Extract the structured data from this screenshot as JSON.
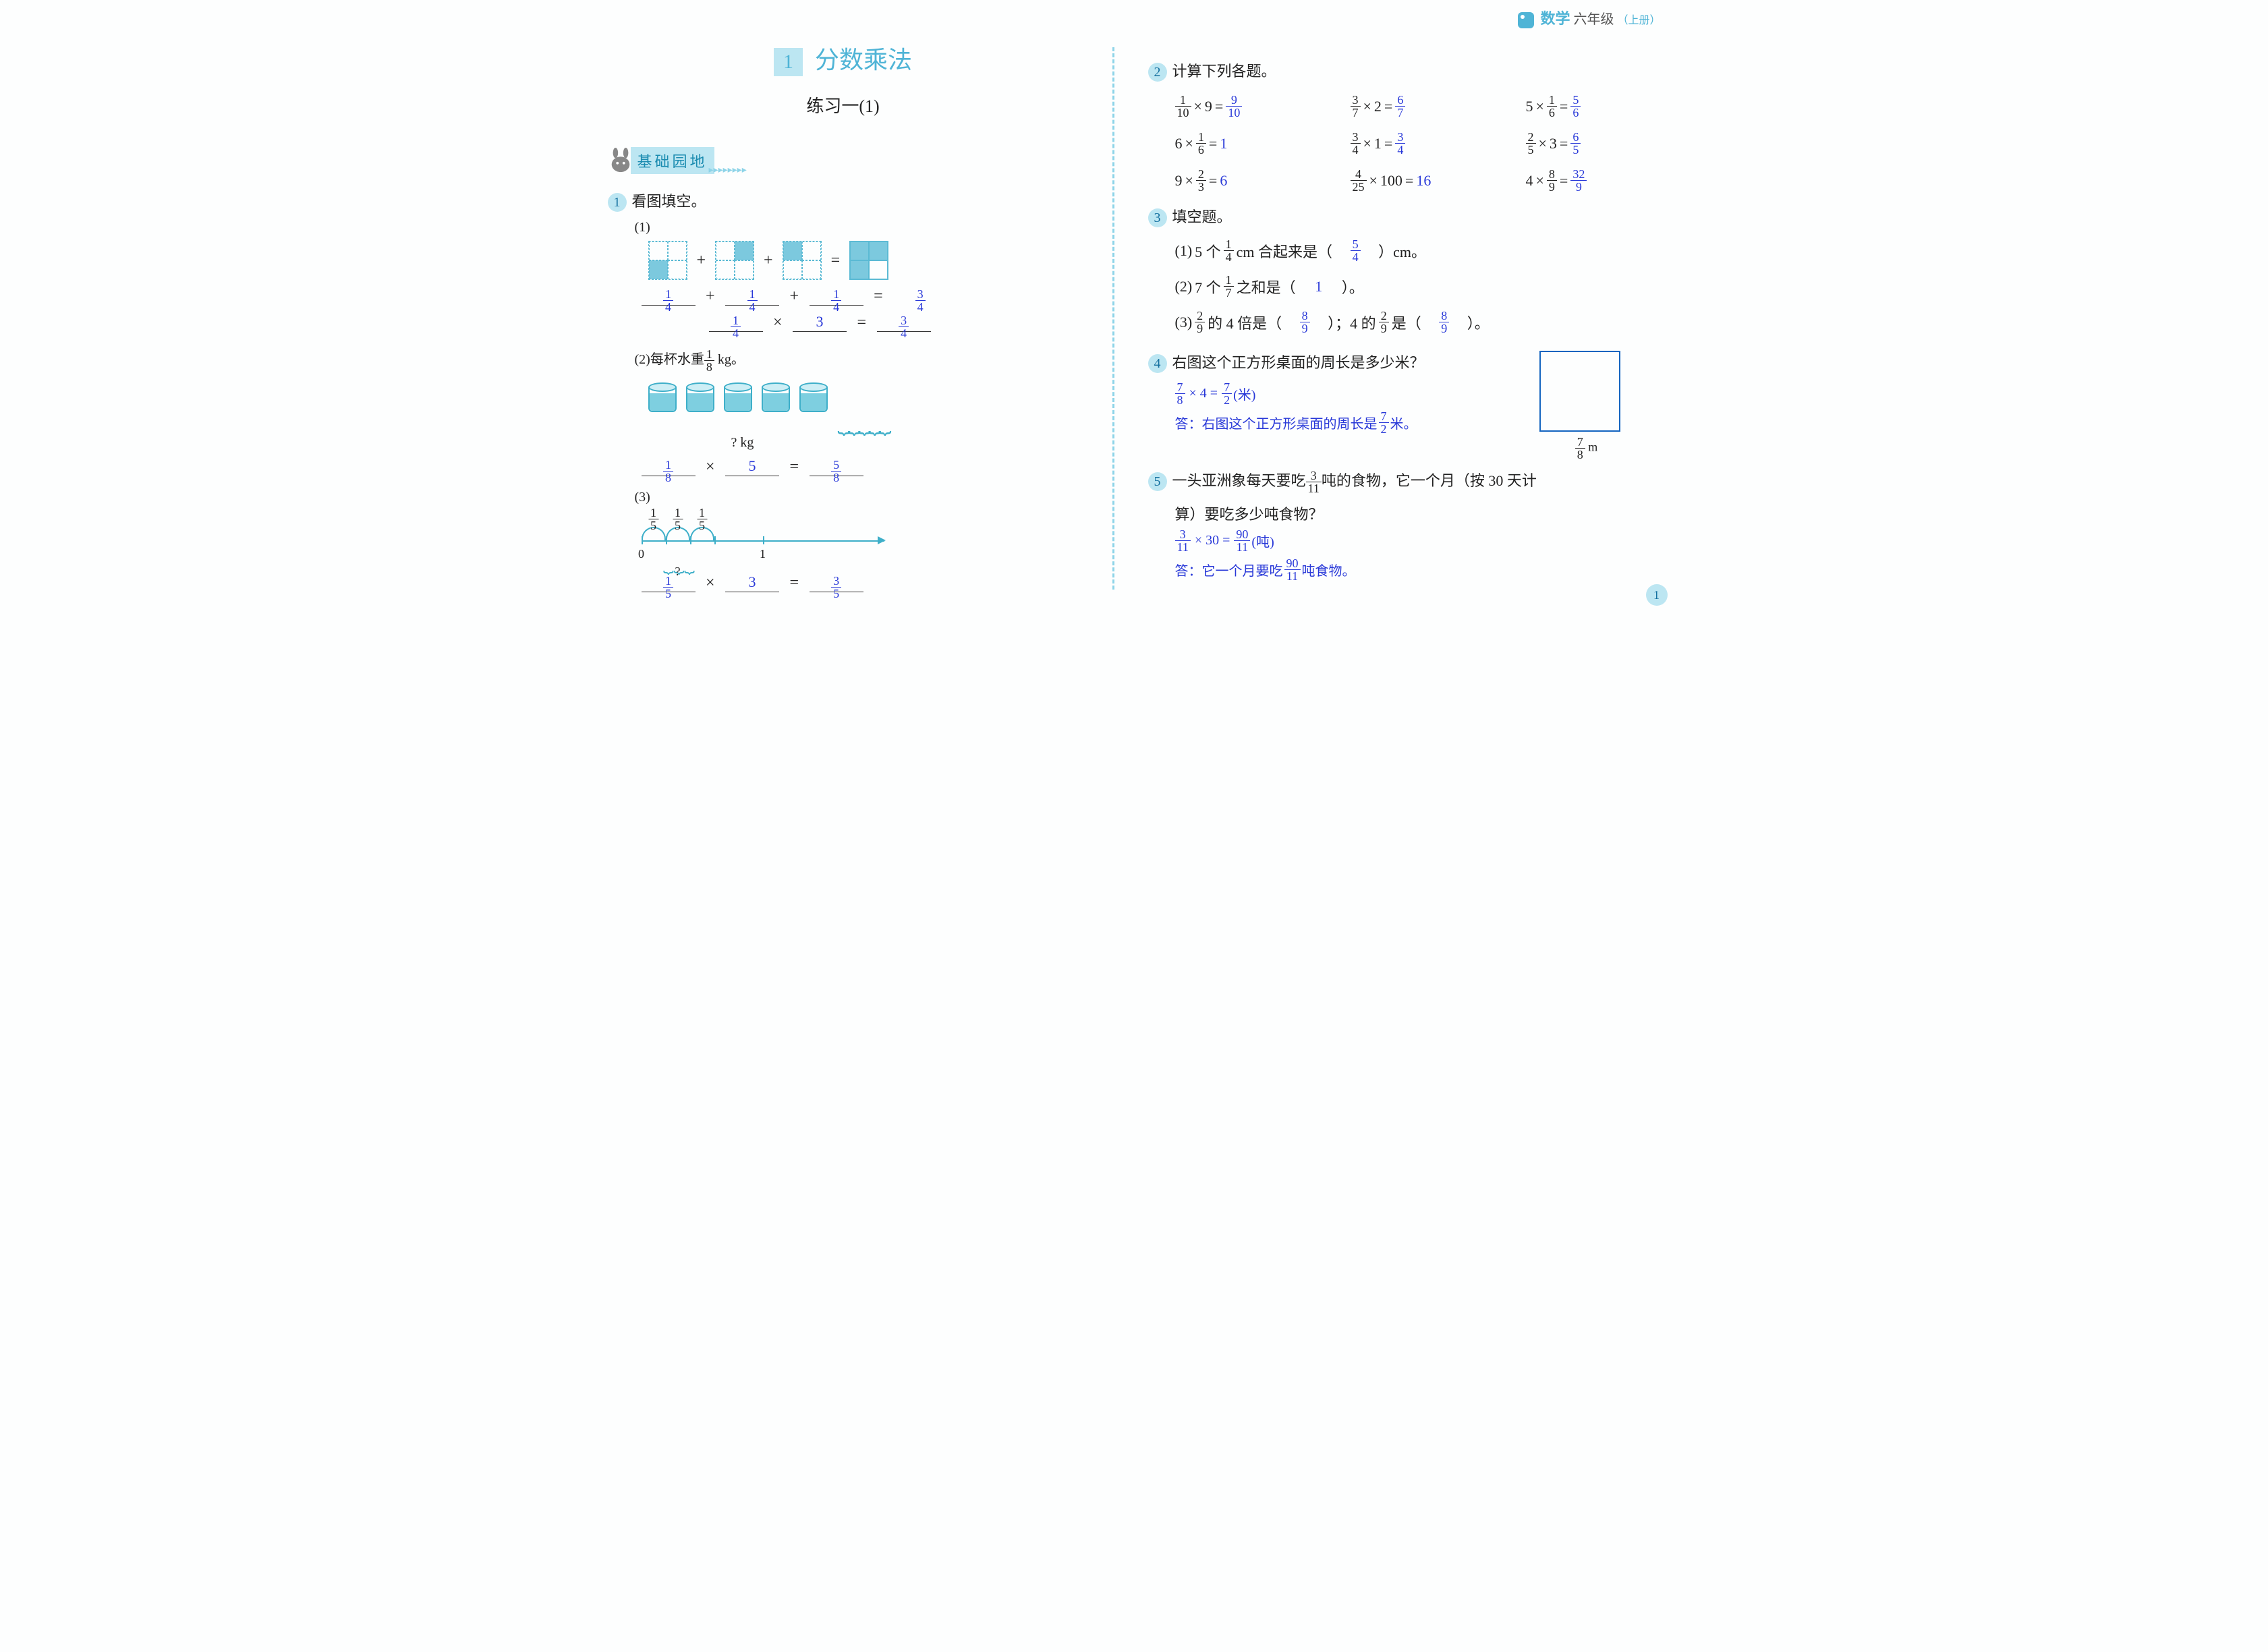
{
  "header": {
    "subject": "数学",
    "grade_prefix": "六",
    "grade": "年级",
    "volume": "（上册）"
  },
  "chapter": {
    "num": "1",
    "title": "分数乘法",
    "subtitle": "练习一(1)"
  },
  "section": {
    "label": "基础园地"
  },
  "colors": {
    "accent": "#4fb4d6",
    "light_accent": "#bce6f2",
    "answer": "#2838d8",
    "text": "#222222",
    "bg": "#fdfefe"
  },
  "q1": {
    "title": "看图填空。",
    "p1": {
      "add": {
        "a": {
          "n": "1",
          "d": "4"
        },
        "b": {
          "n": "1",
          "d": "4"
        },
        "c": {
          "n": "1",
          "d": "4"
        },
        "sum": {
          "n": "3",
          "d": "4"
        }
      },
      "mul": {
        "a": {
          "n": "1",
          "d": "4"
        },
        "b": "3",
        "res": {
          "n": "3",
          "d": "4"
        }
      }
    },
    "p2": {
      "text_pre": "每杯水重",
      "weight": {
        "n": "1",
        "d": "8"
      },
      "unit": " kg。",
      "brace_label": "? kg",
      "mul": {
        "a": {
          "n": "1",
          "d": "8"
        },
        "b": "5",
        "res": {
          "n": "5",
          "d": "8"
        }
      }
    },
    "p3": {
      "seg_frac": {
        "n": "1",
        "d": "5"
      },
      "ticks": {
        "zero": "0",
        "one": "1"
      },
      "mul": {
        "a": {
          "n": "1",
          "d": "5"
        },
        "b": "3",
        "res": {
          "n": "3",
          "d": "5"
        }
      }
    }
  },
  "q2": {
    "title": "计算下列各题。",
    "rows": [
      [
        {
          "l": {
            "n": "1",
            "d": "10"
          },
          "op": "×",
          "r": "9",
          "ans": {
            "n": "9",
            "d": "10"
          }
        },
        {
          "l": {
            "n": "3",
            "d": "7"
          },
          "op": "×",
          "r": "2",
          "ans": {
            "n": "6",
            "d": "7"
          }
        },
        {
          "lw": "5",
          "op": "×",
          "r": {
            "n": "1",
            "d": "6"
          },
          "ans": {
            "n": "5",
            "d": "6"
          }
        }
      ],
      [
        {
          "lw": "6",
          "op": "×",
          "r": {
            "n": "1",
            "d": "6"
          },
          "answ": "1"
        },
        {
          "l": {
            "n": "3",
            "d": "4"
          },
          "op": "×",
          "r": "1",
          "ans": {
            "n": "3",
            "d": "4"
          }
        },
        {
          "l": {
            "n": "2",
            "d": "5"
          },
          "op": "×",
          "r": "3",
          "ans": {
            "n": "6",
            "d": "5"
          }
        }
      ],
      [
        {
          "lw": "9",
          "op": "×",
          "r": {
            "n": "2",
            "d": "3"
          },
          "answ": "6"
        },
        {
          "l": {
            "n": "4",
            "d": "25"
          },
          "op": "×",
          "r": "100",
          "answ": "16"
        },
        {
          "lw": "4",
          "op": "×",
          "r": {
            "n": "8",
            "d": "9"
          },
          "ans": {
            "n": "32",
            "d": "9"
          }
        }
      ]
    ]
  },
  "q3": {
    "title": "填空题。",
    "items": [
      {
        "num": "(1)",
        "pre": "5 个",
        "frac": {
          "n": "1",
          "d": "4"
        },
        "mid": " cm 合起来是（",
        "ans": {
          "n": "5",
          "d": "4"
        },
        "post": "）cm。"
      },
      {
        "num": "(2)",
        "pre": "7 个",
        "frac": {
          "n": "1",
          "d": "7"
        },
        "mid": "之和是（",
        "answ": "1",
        "post": "）。"
      },
      {
        "num": "(3)",
        "frac1": {
          "n": "2",
          "d": "9"
        },
        "mid1": "的 4 倍是（",
        "ans1": {
          "n": "8",
          "d": "9"
        },
        "mid2": "）；4 的",
        "frac2": {
          "n": "2",
          "d": "9"
        },
        "mid3": "是（",
        "ans2": {
          "n": "8",
          "d": "9"
        },
        "post": "）。"
      }
    ]
  },
  "q4": {
    "title": "右图这个正方形桌面的周长是多少米？",
    "calc": {
      "a": {
        "n": "7",
        "d": "8"
      },
      "op": "× 4 =",
      "res": {
        "n": "7",
        "d": "2"
      },
      "unit": "(米)"
    },
    "answer_pre": "答：右图这个正方形桌面的周长是",
    "answer_frac": {
      "n": "7",
      "d": "2"
    },
    "answer_post": "米。",
    "side": {
      "n": "7",
      "d": "8"
    },
    "side_unit": " m"
  },
  "q5": {
    "pre": "一头亚洲象每天要吃",
    "frac": {
      "n": "3",
      "d": "11"
    },
    "mid": "吨的食物，它一个月（按 30 天计",
    "line2": "算）要吃多少吨食物？",
    "calc": {
      "a": {
        "n": "3",
        "d": "11"
      },
      "op": "× 30 =",
      "res": {
        "n": "90",
        "d": "11"
      },
      "unit": "(吨)"
    },
    "answer_pre": "答：它一个月要吃",
    "answer_frac": {
      "n": "90",
      "d": "11"
    },
    "answer_post": "吨食物。"
  },
  "page_number": "1"
}
